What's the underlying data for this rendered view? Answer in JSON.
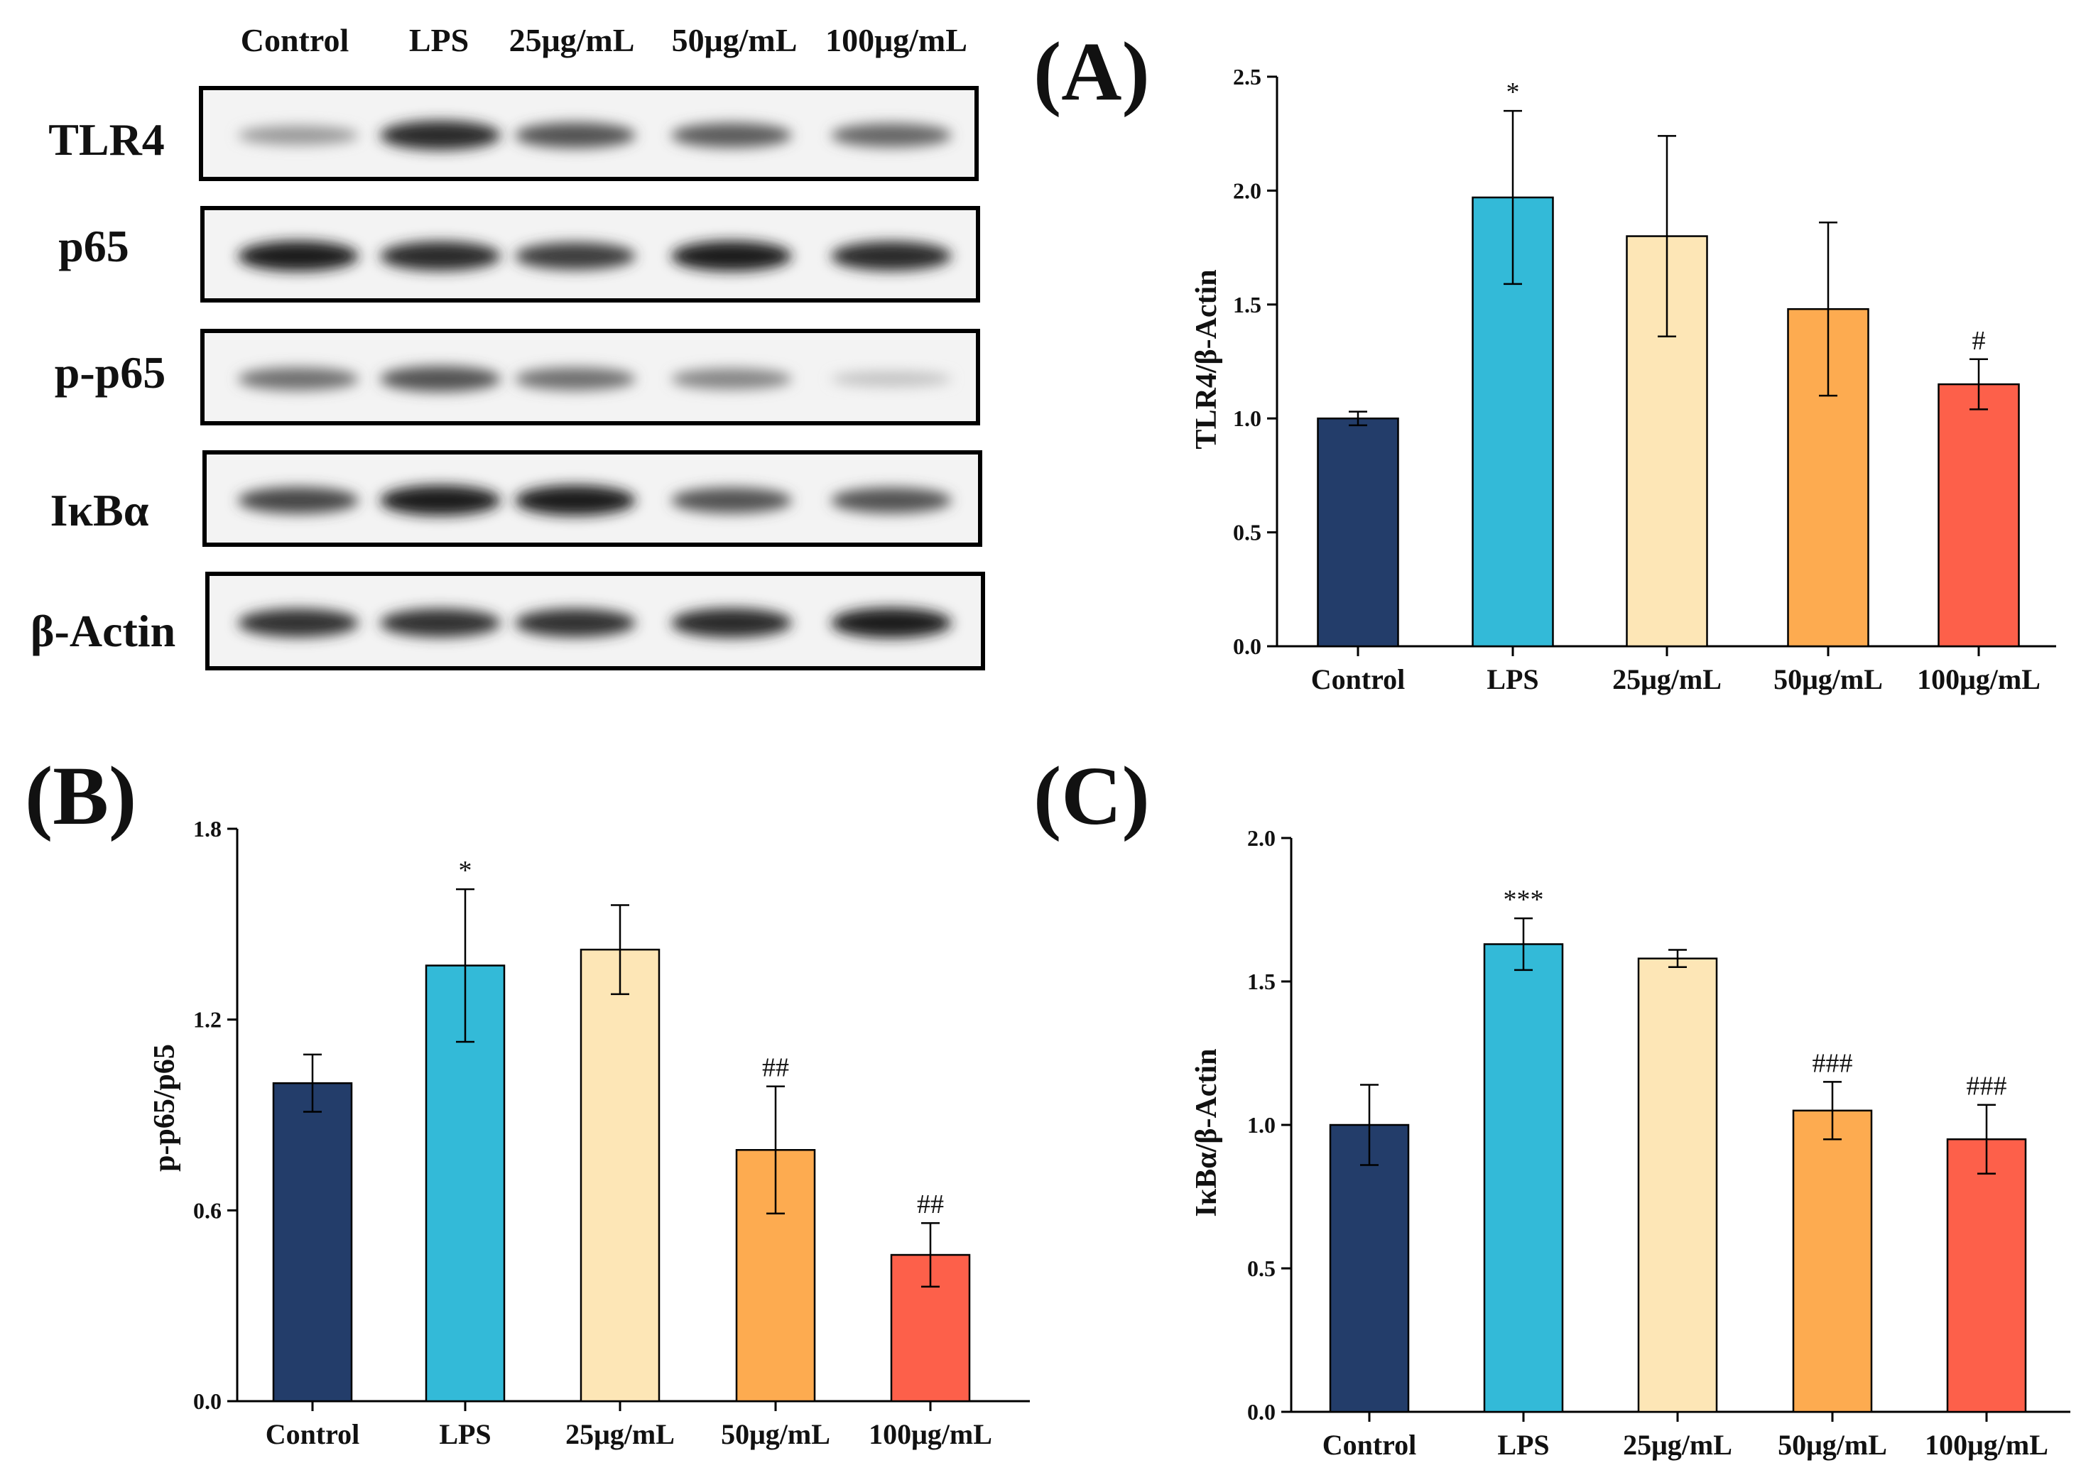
{
  "colors": {
    "control": "#233d6a",
    "lps": "#33bad8",
    "c25": "#fde6b6",
    "c50": "#fdab50",
    "c100": "#fd604a"
  },
  "blot": {
    "lanes": [
      "Control",
      "LPS",
      "25μg/mL",
      "50μg/mL",
      "100μg/mL"
    ],
    "rows": [
      {
        "label": "TLR4",
        "intensity": [
          0.35,
          0.9,
          0.7,
          0.65,
          0.6
        ]
      },
      {
        "label": "p65",
        "intensity": [
          0.95,
          0.9,
          0.8,
          0.95,
          0.9
        ]
      },
      {
        "label": "p-p65",
        "intensity": [
          0.55,
          0.7,
          0.55,
          0.45,
          0.15
        ]
      },
      {
        "label": "IκBα",
        "intensity": [
          0.75,
          0.95,
          0.95,
          0.7,
          0.7
        ]
      },
      {
        "label": "β-Actin",
        "intensity": [
          0.85,
          0.85,
          0.85,
          0.9,
          0.95
        ]
      }
    ]
  },
  "chart_data": [
    {
      "type": "bar",
      "panel": "(A)",
      "categories": [
        "Control",
        "LPS",
        "25μg/mL",
        "50μg/mL",
        "100μg/mL"
      ],
      "values": [
        1.0,
        1.97,
        1.8,
        1.48,
        1.15
      ],
      "errors": [
        0.03,
        0.38,
        0.44,
        0.38,
        0.11
      ],
      "annotations": [
        "",
        "*",
        "",
        "",
        "#"
      ],
      "ylabel": "TLR4/β-Actin",
      "ylim": [
        0,
        2.5
      ],
      "yticks": [
        "0.0",
        "0.5",
        "1.0",
        "1.5",
        "2.0",
        "2.5"
      ]
    },
    {
      "type": "bar",
      "panel": "(B)",
      "categories": [
        "Control",
        "LPS",
        "25μg/mL",
        "50μg/mL",
        "100μg/mL"
      ],
      "values": [
        1.0,
        1.37,
        1.42,
        0.79,
        0.46
      ],
      "errors": [
        0.09,
        0.24,
        0.14,
        0.2,
        0.1
      ],
      "annotations": [
        "",
        "*",
        "",
        "##",
        "##"
      ],
      "ylabel": "p-p65/p65",
      "ylim": [
        0,
        1.8
      ],
      "yticks": [
        "0.0",
        "0.6",
        "1.2",
        "1.8"
      ]
    },
    {
      "type": "bar",
      "panel": "(C)",
      "categories": [
        "Control",
        "LPS",
        "25μg/mL",
        "50μg/mL",
        "100μg/mL"
      ],
      "values": [
        1.0,
        1.63,
        1.58,
        1.05,
        0.95
      ],
      "errors": [
        0.14,
        0.09,
        0.03,
        0.1,
        0.12
      ],
      "annotations": [
        "",
        "***",
        "",
        "###",
        "###"
      ],
      "ylabel": "IκBα/β-Actin",
      "ylim": [
        0,
        2.0
      ],
      "yticks": [
        "0.0",
        "0.5",
        "1.0",
        "1.5",
        "2.0"
      ]
    }
  ]
}
